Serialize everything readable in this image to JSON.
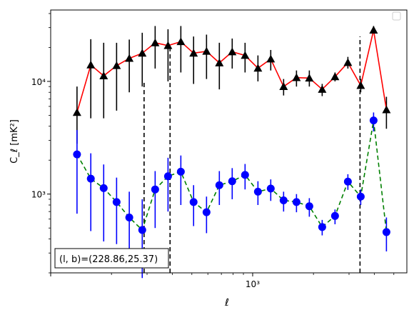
{
  "chart_data": {
    "type": "scatter",
    "xscale": "log",
    "yscale": "log",
    "xlim": [
      100,
      5800
    ],
    "ylim": [
      200,
      43000
    ],
    "xlabel": "ℓ",
    "ylabel": "C_ℓ [mK²]",
    "x_major_ticks": [
      {
        "value": 1000,
        "label": "10³"
      }
    ],
    "y_major_ticks": [
      {
        "value": 1000,
        "label": "10³"
      },
      {
        "value": 10000,
        "label": "10⁴"
      }
    ],
    "annotation": "(l, b)=(228.86,25.37)",
    "vlines": [
      {
        "x": 290,
        "y_top": 10000
      },
      {
        "x": 390,
        "y_top": 20000
      },
      {
        "x": 3400,
        "y_top": 25000
      }
    ],
    "legend": {
      "position": "upper right",
      "entries": []
    },
    "series": [
      {
        "marker": "triangle",
        "marker_color": "#000000",
        "line_color": "#ff0000",
        "line_style": "solid",
        "errorbar_color": "#000000",
        "x": [
          135,
          158,
          183,
          212,
          245,
          284,
          329,
          381,
          441,
          510,
          591,
          684,
          792,
          917,
          1062,
          1229,
          1423,
          1648,
          1908,
          2209,
          2557,
          2961,
          3428,
          3969,
          4595
        ],
        "y": [
          5300,
          14000,
          11200,
          13800,
          16000,
          17800,
          22000,
          20800,
          22500,
          17800,
          18500,
          14600,
          18300,
          17000,
          13100,
          15800,
          9000,
          10800,
          10700,
          8500,
          11000,
          14700,
          9200,
          28500,
          5600
        ],
        "yerr_low": [
          2500,
          9300,
          6500,
          8300,
          8000,
          8800,
          9000,
          10800,
          10500,
          8300,
          8000,
          6100,
          5300,
          5000,
          3100,
          3300,
          1500,
          1800,
          1700,
          1100,
          1000,
          1700,
          1200,
          1500,
          1800
        ],
        "yerr_high": [
          3700,
          9700,
          10800,
          8200,
          7500,
          9200,
          9000,
          8200,
          8500,
          7200,
          7500,
          7400,
          5700,
          5000,
          3900,
          3200,
          1500,
          1700,
          1800,
          1000,
          1000,
          1800,
          1300,
          2500,
          1700
        ]
      },
      {
        "marker": "circle",
        "marker_color": "#0000ff",
        "line_color": "#008000",
        "line_style": "dashed",
        "errorbar_color": "#0000ff",
        "x": [
          135,
          158,
          183,
          212,
          245,
          284,
          329,
          381,
          441,
          510,
          591,
          684,
          792,
          917,
          1062,
          1229,
          1423,
          1648,
          1908,
          2209,
          2557,
          2961,
          3428,
          3969,
          4595
        ],
        "y": [
          2250,
          1370,
          1130,
          850,
          620,
          480,
          1100,
          1440,
          1580,
          850,
          690,
          1200,
          1300,
          1480,
          1050,
          1120,
          880,
          850,
          780,
          510,
          640,
          1290,
          950,
          4500,
          460
        ],
        "yerr_low": [
          1580,
          900,
          750,
          490,
          380,
          300,
          600,
          740,
          780,
          330,
          240,
          400,
          400,
          380,
          250,
          250,
          180,
          160,
          150,
          80,
          100,
          200,
          150,
          900,
          150
        ],
        "yerr_high": [
          1450,
          930,
          700,
          550,
          430,
          420,
          500,
          660,
          620,
          350,
          260,
          400,
          400,
          370,
          250,
          230,
          170,
          150,
          140,
          80,
          90,
          210,
          150,
          800,
          160
        ]
      }
    ]
  }
}
